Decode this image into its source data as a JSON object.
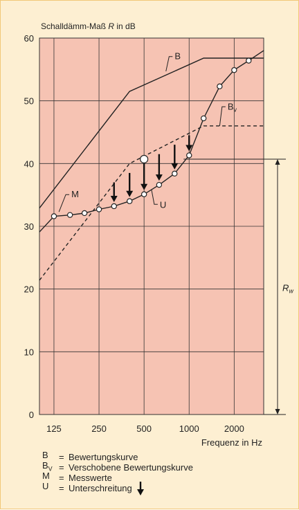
{
  "chart_data": {
    "type": "line",
    "ylabel_prefix": "Schalldämm-Maß ",
    "ylabel_symbol": "R",
    "ylabel_suffix": " in dB",
    "xlabel": "Frequenz in Hz",
    "ylim": [
      0,
      60
    ],
    "yticks": [
      0,
      10,
      20,
      30,
      40,
      50,
      60
    ],
    "xscale": "log2",
    "xlim": [
      100,
      3150
    ],
    "xticks": [
      125,
      250,
      500,
      1000,
      2000
    ],
    "colors": {
      "plot_bg": "#f6c3b3",
      "panel_bg": "#fdefd2",
      "border": "#f2c777",
      "grid": "#333333",
      "line": "#222222"
    },
    "series": [
      {
        "key": "B",
        "label": "B",
        "style": "solid",
        "x": [
          100,
          400,
          1250,
          3150
        ],
        "y": [
          32.9,
          51.5,
          56.8,
          56.8
        ]
      },
      {
        "key": "Bv",
        "label": "B",
        "label_sub": "v",
        "style": "dashed",
        "x": [
          100,
          400,
          1250,
          3150
        ],
        "y": [
          21.4,
          40.0,
          46.0,
          46.0
        ]
      },
      {
        "key": "M",
        "label": "M",
        "style": "solid",
        "markers": true,
        "x": [
          125,
          160,
          200,
          250,
          315,
          400,
          500,
          630,
          800,
          1000,
          1250,
          1600,
          2000,
          2500
        ],
        "y": [
          31.6,
          31.8,
          32.1,
          32.7,
          33.2,
          34.0,
          35.1,
          36.6,
          38.4,
          41.3,
          47.2,
          52.3,
          54.9,
          56.4
        ],
        "curve_x": [
          100,
          125,
          160,
          200,
          250,
          315,
          400,
          500,
          630,
          800,
          1000,
          1250,
          1600,
          2000,
          2500,
          3150
        ],
        "curve_y": [
          29.1,
          31.6,
          31.8,
          32.1,
          32.7,
          33.2,
          34.0,
          35.1,
          36.6,
          38.4,
          41.3,
          47.2,
          52.3,
          54.9,
          56.4,
          58.0
        ]
      }
    ],
    "shortfall_label": "U",
    "shortfall_arrows": [
      {
        "x": 315,
        "from": 37.0,
        "to": 33.2
      },
      {
        "x": 400,
        "from": 38.5,
        "to": 34.0
      },
      {
        "x": 500,
        "from": 40.0,
        "to": 35.1
      },
      {
        "x": 630,
        "from": 41.5,
        "to": 36.6
      },
      {
        "x": 800,
        "from": 43.0,
        "to": 38.4
      },
      {
        "x": 1000,
        "from": 44.5,
        "to": 41.3
      }
    ],
    "reference_point": {
      "x": 500,
      "y": 40.7
    },
    "rw_line": {
      "y": 40.7
    },
    "rw_label": "R",
    "rw_label_sub": "w"
  },
  "legend": [
    {
      "key": "B",
      "key_sub": "",
      "eq": "=",
      "text": "Bewertungskurve",
      "arrow": false
    },
    {
      "key": "B",
      "key_sub": "V",
      "eq": "=",
      "text": "Verschobene Bewertungskurve",
      "arrow": false
    },
    {
      "key": "M",
      "key_sub": "",
      "eq": "=",
      "text": "Messwerte",
      "arrow": false
    },
    {
      "key": "U",
      "key_sub": "",
      "eq": "=",
      "text": "Unterschreitung",
      "arrow": true
    }
  ]
}
